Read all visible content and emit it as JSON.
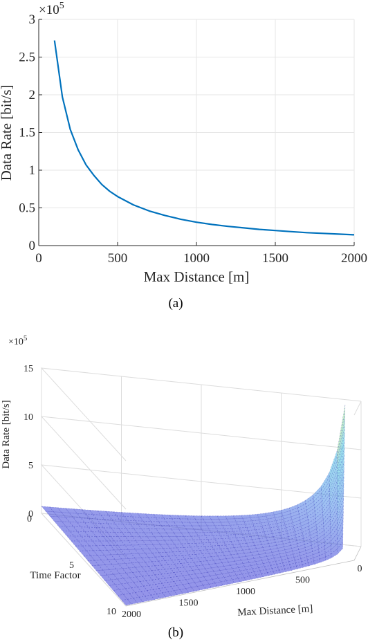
{
  "chart_data": [
    {
      "type": "line",
      "panel_caption": "(a)",
      "xlabel": "Max Distance [m]",
      "ylabel": "Data Rate [bit/s]",
      "y_exponent_label": "×10",
      "y_exponent_power": "5",
      "xlim": [
        0,
        2000
      ],
      "ylim": [
        0,
        3
      ],
      "xticks": [
        "0",
        "500",
        "1000",
        "1500",
        "2000"
      ],
      "yticks": [
        "0",
        "0.5",
        "1",
        "1.5",
        "2",
        "2.5",
        "3"
      ],
      "grid": true,
      "series": [
        {
          "color": "#0072bd",
          "x": [
            100,
            150,
            200,
            250,
            300,
            350,
            400,
            450,
            500,
            600,
            700,
            800,
            900,
            1000,
            1100,
            1200,
            1300,
            1400,
            1500,
            1600,
            1700,
            1800,
            1900,
            2000
          ],
          "values": [
            2.72,
            1.97,
            1.54,
            1.27,
            1.07,
            0.93,
            0.81,
            0.72,
            0.65,
            0.54,
            0.46,
            0.4,
            0.35,
            0.31,
            0.28,
            0.255,
            0.235,
            0.215,
            0.2,
            0.185,
            0.172,
            0.162,
            0.152,
            0.143
          ]
        }
      ]
    },
    {
      "type": "surface",
      "panel_caption": "(b)",
      "xlabel": "Max Distance [m]",
      "ylabel": "Time Factor",
      "zlabel": "Data Rate [bit/s]",
      "z_exponent_label": "×10",
      "z_exponent_power": "5",
      "xticks": [
        "0",
        "500",
        "1000",
        "1500",
        "2000"
      ],
      "yticks": [
        "0",
        "5",
        "10"
      ],
      "zticks": [
        "0",
        "5",
        "10",
        "15"
      ],
      "xlim": [
        0,
        2000
      ],
      "ylim": [
        0,
        10
      ],
      "zlim": [
        0,
        15
      ],
      "colormap": [
        "#3b3bd6",
        "#4f8de8",
        "#4fd0e0",
        "#ffff40"
      ],
      "z_max": 14.5
    }
  ]
}
